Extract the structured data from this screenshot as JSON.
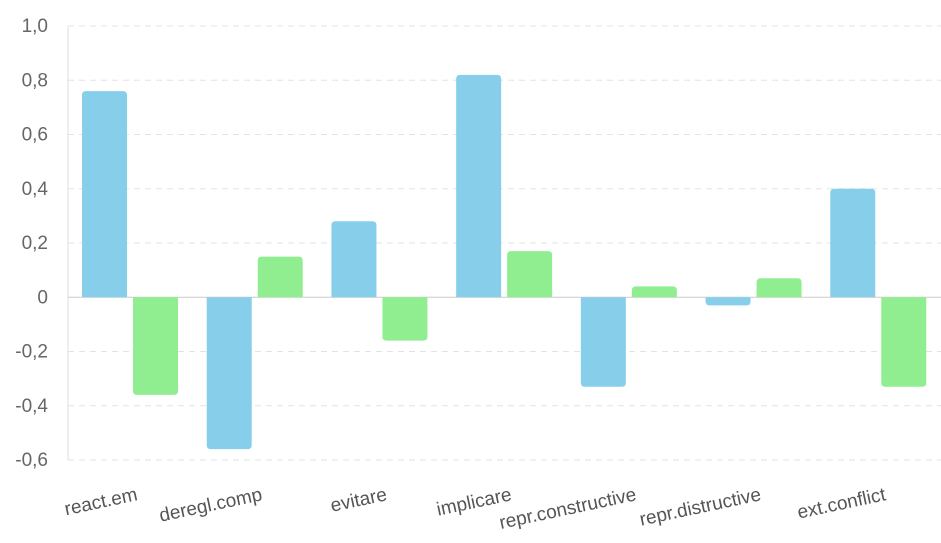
{
  "chart_data": {
    "type": "bar",
    "title": "",
    "xlabel": "",
    "ylabel": "",
    "categories": [
      "react.em",
      "deregl.comp",
      "evitare",
      "implicare",
      "repr.constructive",
      "repr.distructive",
      "ext.conflict"
    ],
    "series": [
      {
        "color": "#87CEEB",
        "values": [
          0.76,
          -0.56,
          0.28,
          0.82,
          -0.33,
          -0.03,
          0.4
        ]
      },
      {
        "color": "#90EE90",
        "values": [
          -0.36,
          0.15,
          -0.16,
          0.17,
          0.04,
          0.07,
          -0.33
        ]
      }
    ],
    "ylim": [
      -0.6,
      1.0
    ],
    "yticks": [
      1.0,
      0.8,
      0.6,
      0.4,
      0.2,
      0,
      -0.2,
      -0.4,
      -0.6
    ],
    "ytick_labels": [
      "1,0",
      "0,8",
      "0,6",
      "0,4",
      "0,2",
      "0",
      "-0,2",
      "-0,4",
      "-0,6"
    ],
    "grid": true,
    "legend": "none"
  }
}
